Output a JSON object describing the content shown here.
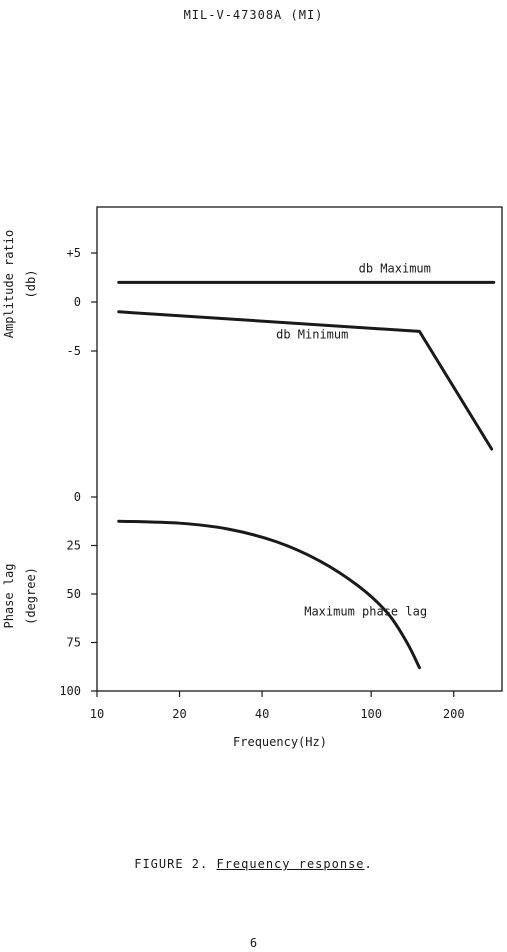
{
  "document": {
    "header": "MIL-V-47308A (MI)",
    "caption_label": "FIGURE 2.",
    "caption_title": "Frequency response",
    "caption_period": ".",
    "page_number": "6"
  },
  "chart_data": {
    "type": "line",
    "x_axis": {
      "label": "Frequency(Hz)",
      "scale": "log",
      "range": [
        10,
        300
      ],
      "ticks": [
        10,
        20,
        40,
        100,
        200
      ],
      "tick_labels": [
        "10",
        "20",
        "40",
        "100",
        "200"
      ]
    },
    "panels": [
      {
        "name": "amplitude",
        "ylabel": [
          "Amplitude ratio",
          "(db)"
        ],
        "ylim": [
          -20,
          10
        ],
        "ticks": [
          5,
          0,
          -5
        ],
        "tick_labels": [
          "+5",
          "0",
          "-5"
        ],
        "series": [
          {
            "name": "db Maximum",
            "x": [
              12,
              280
            ],
            "y": [
              2,
              2
            ]
          },
          {
            "name": "db Minimum",
            "x": [
              12,
              150,
              275
            ],
            "y": [
              -1,
              -3,
              -15
            ]
          }
        ],
        "annotations": [
          {
            "text": "db Maximum",
            "x": 90,
            "y": 3
          },
          {
            "text": "db Minimum",
            "x": 45,
            "y": -3.7
          }
        ]
      },
      {
        "name": "phase",
        "ylabel": [
          "Phase lag",
          "(degree)"
        ],
        "ylim": [
          0,
          100
        ],
        "inverted": true,
        "ticks": [
          0,
          25,
          50,
          75,
          100
        ],
        "tick_labels": [
          "0",
          "25",
          "50",
          "75",
          "100"
        ],
        "series": [
          {
            "name": "Maximum phase lag",
            "x": [
              12,
              20,
              30,
              45,
              65,
              90,
              115,
              135,
              150
            ],
            "y": [
              12.5,
              13.5,
              16.5,
              23,
              33,
              46,
              60,
              75,
              88
            ]
          }
        ],
        "annotations": [
          {
            "text": "Maximum phase lag",
            "x": 57,
            "y": 61
          }
        ]
      }
    ],
    "grid": false,
    "legend": "none"
  }
}
